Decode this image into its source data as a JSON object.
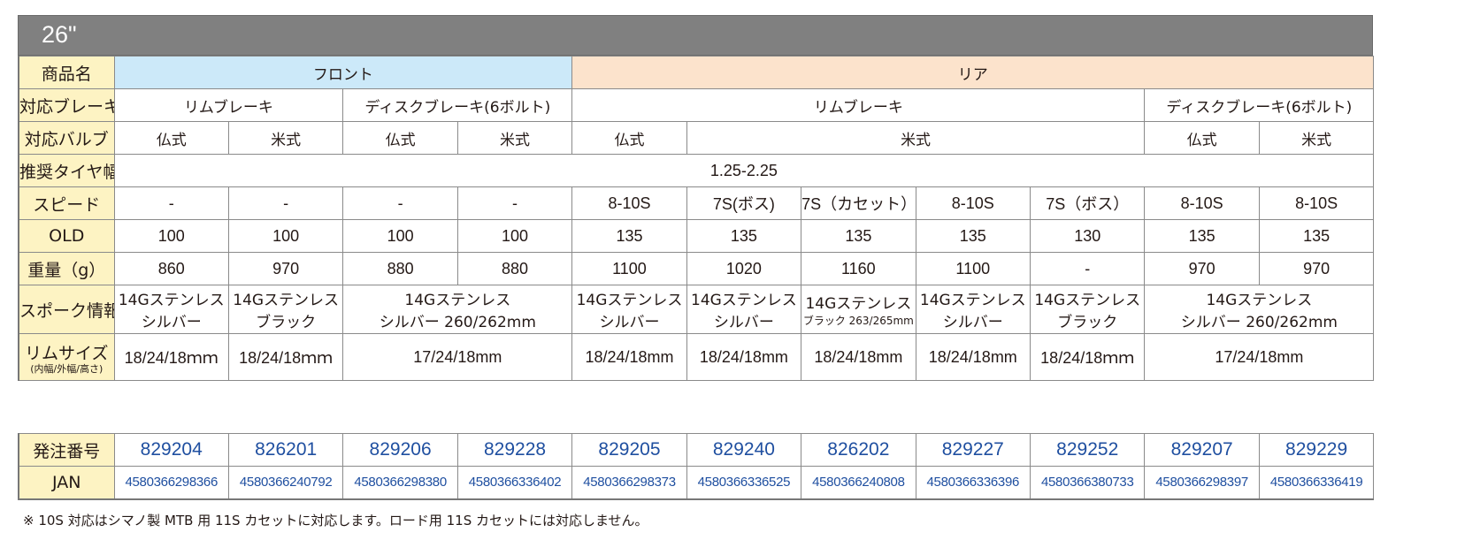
{
  "title": "26\"",
  "spec": {
    "labels": {
      "product": "商品名",
      "brake": "対応ブレーキ",
      "valve": "対応バルブ",
      "tire": "推奨タイヤ幅",
      "speed": "スピード",
      "old": "OLD",
      "weight": "重量（g）",
      "spoke": "スポーク情報",
      "rim": "リムサイズ",
      "rim_sub": "(内幅/外幅/高さ)"
    },
    "front": "フロント",
    "rear": "リア",
    "brake_rim": "リムブレーキ",
    "brake_disc": "ディスクブレーキ(6ボルト)",
    "valve_fr": "仏式",
    "valve_us": "米式",
    "tire_width": "1.25-2.25",
    "speed": [
      "-",
      "-",
      "-",
      "-",
      "8-10S",
      "7S(ボス)",
      "7S（カセット）",
      "8-10S",
      "7S（ボス）",
      "8-10S",
      "8-10S"
    ],
    "old": [
      "100",
      "100",
      "100",
      "100",
      "135",
      "135",
      "135",
      "135",
      "130",
      "135",
      "135"
    ],
    "weight": [
      "860",
      "970",
      "880",
      "880",
      "1100",
      "1020",
      "1160",
      "1100",
      "-",
      "970",
      "970"
    ],
    "spoke_line1": "14Gステンレス",
    "spoke": {
      "silver": "シルバー",
      "black": "ブラック",
      "silver_260": "シルバー 260/262mm",
      "black_263": "ブラック 263/265mm"
    },
    "rim": {
      "r18": "18/24/18mm",
      "r18_wide": "18/24/18ｍｍ",
      "r17": "17/24/18mm"
    }
  },
  "order": {
    "label_no": "発注番号",
    "label_jan": "JAN",
    "numbers": [
      "829204",
      "826201",
      "829206",
      "829228",
      "829205",
      "829240",
      "826202",
      "829227",
      "829252",
      "829207",
      "829229"
    ],
    "jan": [
      "4580366298366",
      "4580366240792",
      "4580366298380",
      "4580366336402",
      "4580366298373",
      "4580366336525",
      "4580366240808",
      "4580366336396",
      "4580366380733",
      "4580366298397",
      "4580366336419"
    ]
  },
  "note": "※ 10S 対応はシマノ製 MTB 用 11S カセットに対応します。ロード用 11S カセットには対応しません。",
  "colors": {
    "title_bar": "#808080",
    "label_bg": "#fdf3c3",
    "front_bg": "#cce9f9",
    "rear_bg": "#fce3cc",
    "code_text": "#1f4fa0"
  }
}
